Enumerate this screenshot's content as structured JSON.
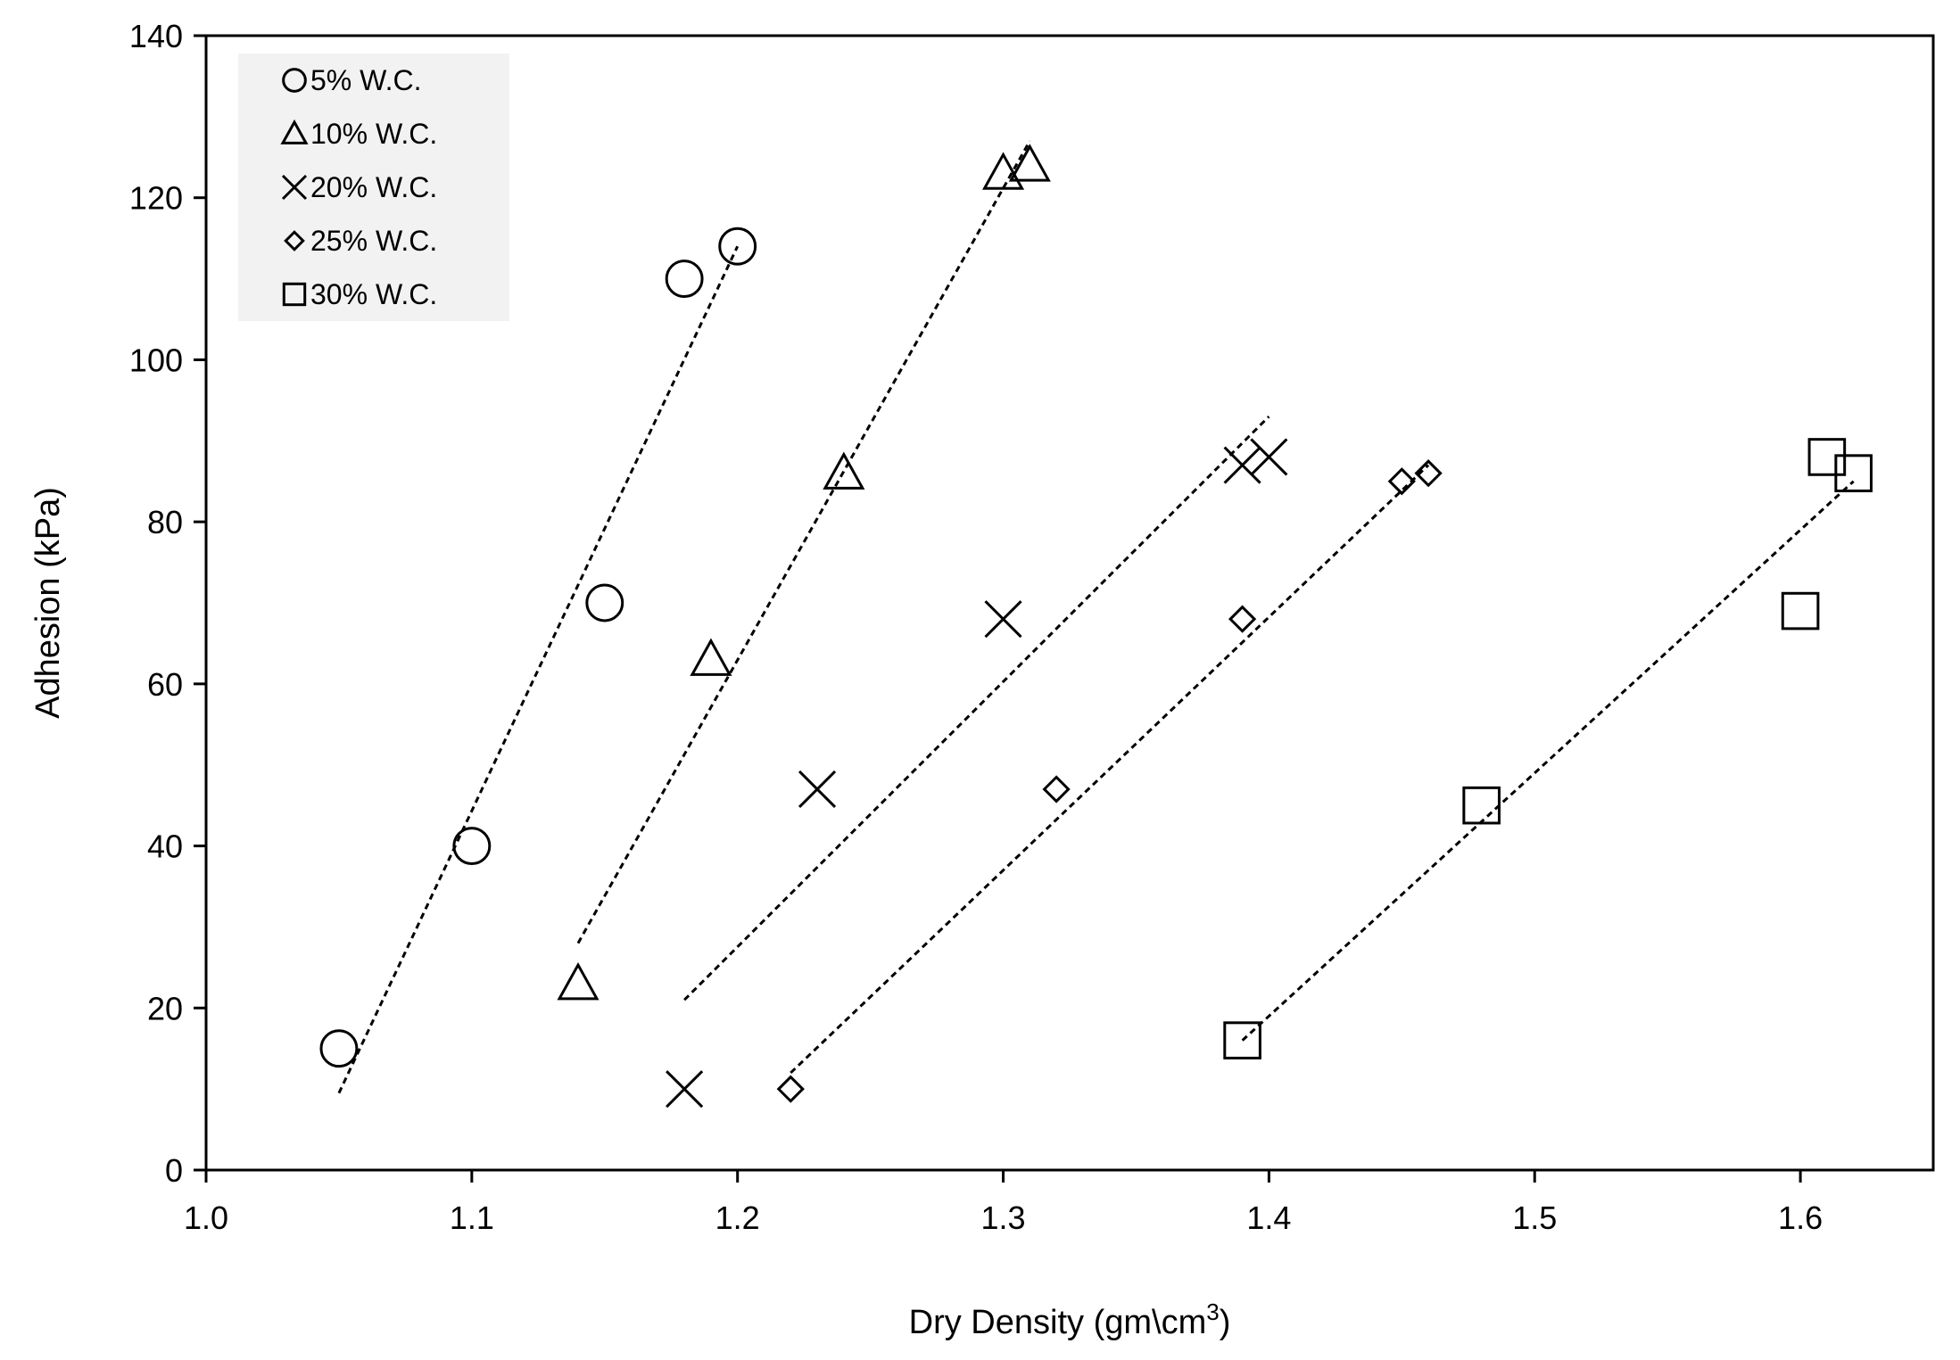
{
  "chart_data": {
    "type": "scatter",
    "title": "",
    "xlabel": "Dry Density (gm\\cm",
    "xlabel_superscript": "3",
    "xlabel_suffix": ")",
    "ylabel": "Adhesion (kPa)",
    "xlim": [
      1.0,
      1.65
    ],
    "ylim": [
      0,
      140
    ],
    "x_ticks": [
      1.0,
      1.1,
      1.2,
      1.3,
      1.4,
      1.5,
      1.6
    ],
    "x_tick_labels": [
      "1.0",
      "1.1",
      "1.2",
      "1.3",
      "1.4",
      "1.5",
      "1.6"
    ],
    "y_ticks": [
      0,
      20,
      40,
      60,
      80,
      100,
      120,
      140
    ],
    "y_tick_labels": [
      "0",
      "20",
      "40",
      "60",
      "80",
      "100",
      "120",
      "140"
    ],
    "grid": false,
    "legend_position": "top-left",
    "marker_color": "#000000",
    "series": [
      {
        "name": "5% W.C.",
        "marker": "circle",
        "points": [
          [
            1.05,
            15
          ],
          [
            1.1,
            40
          ],
          [
            1.15,
            70
          ],
          [
            1.18,
            110
          ],
          [
            1.2,
            114
          ]
        ],
        "trendline": [
          [
            1.05,
            9.5
          ],
          [
            1.2,
            114
          ]
        ]
      },
      {
        "name": "10% W.C.",
        "marker": "triangle",
        "points": [
          [
            1.14,
            23
          ],
          [
            1.19,
            63
          ],
          [
            1.24,
            86
          ],
          [
            1.3,
            123
          ],
          [
            1.31,
            124
          ]
        ],
        "trendline": [
          [
            1.14,
            28
          ],
          [
            1.31,
            127
          ]
        ]
      },
      {
        "name": "20% W.C.",
        "marker": "cross",
        "points": [
          [
            1.18,
            10
          ],
          [
            1.23,
            47
          ],
          [
            1.3,
            68
          ],
          [
            1.39,
            87
          ],
          [
            1.4,
            88
          ]
        ],
        "trendline": [
          [
            1.18,
            21
          ],
          [
            1.4,
            93
          ]
        ]
      },
      {
        "name": "25% W.C.",
        "marker": "diamond",
        "points": [
          [
            1.22,
            10
          ],
          [
            1.32,
            47
          ],
          [
            1.39,
            68
          ],
          [
            1.45,
            85
          ],
          [
            1.46,
            86
          ]
        ],
        "trendline": [
          [
            1.22,
            12
          ],
          [
            1.46,
            87
          ]
        ]
      },
      {
        "name": "30% W.C.",
        "marker": "square",
        "points": [
          [
            1.39,
            16
          ],
          [
            1.48,
            45
          ],
          [
            1.6,
            69
          ],
          [
            1.61,
            88
          ],
          [
            1.62,
            86
          ]
        ],
        "trendline": [
          [
            1.39,
            16
          ],
          [
            1.62,
            85
          ]
        ]
      }
    ]
  }
}
